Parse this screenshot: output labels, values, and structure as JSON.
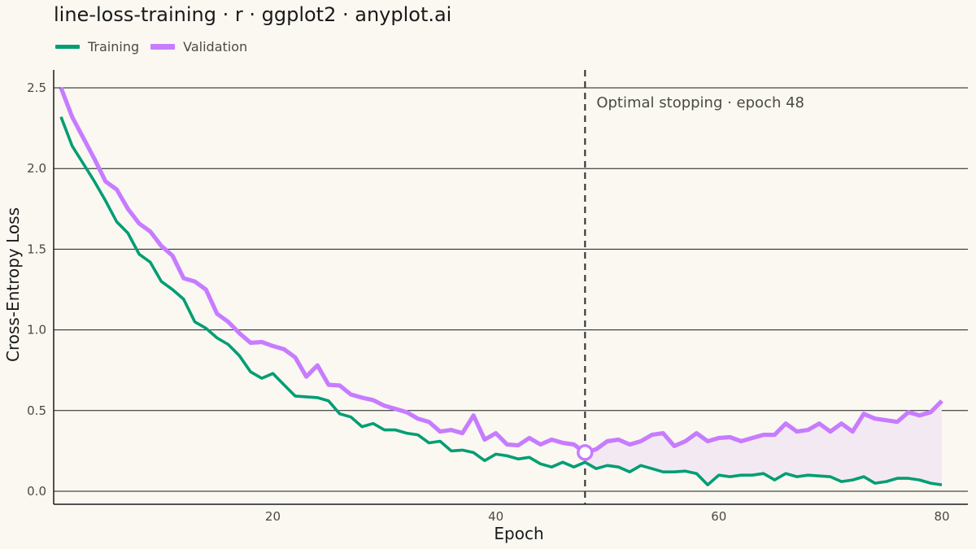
{
  "title": "line-loss-training · r · ggplot2 · anyplot.ai",
  "colors": {
    "background": "#FAF8F1",
    "training": "#009E73",
    "validation": "#C77CFF",
    "gap_fill": "#F3E9F3",
    "grid": "#1A1A1A",
    "stop_line": "#3A3A3A"
  },
  "chart_data": {
    "type": "line",
    "title": "line-loss-training · r · ggplot2 · anyplot.ai",
    "xlabel": "Epoch",
    "ylabel": "Cross-Entropy Loss",
    "xlim": [
      1,
      80
    ],
    "ylim": [
      0,
      2.5
    ],
    "x_ticks": [
      20,
      40,
      60,
      80
    ],
    "y_ticks": [
      0.0,
      0.5,
      1.0,
      1.5,
      2.0,
      2.5
    ],
    "y_tick_labels": [
      "0.0",
      "0.5",
      "1.0",
      "1.5",
      "2.0",
      "2.5"
    ],
    "grid": "horizontal major",
    "legend_position": "top-left",
    "x": [
      1,
      2,
      3,
      4,
      5,
      6,
      7,
      8,
      9,
      10,
      11,
      12,
      13,
      14,
      15,
      16,
      17,
      18,
      19,
      20,
      21,
      22,
      23,
      24,
      25,
      26,
      27,
      28,
      29,
      30,
      31,
      32,
      33,
      34,
      35,
      36,
      37,
      38,
      39,
      40,
      41,
      42,
      43,
      44,
      45,
      46,
      47,
      48,
      49,
      50,
      51,
      52,
      53,
      54,
      55,
      56,
      57,
      58,
      59,
      60,
      61,
      62,
      63,
      64,
      65,
      66,
      67,
      68,
      69,
      70,
      71,
      72,
      73,
      74,
      75,
      76,
      77,
      78,
      79,
      80
    ],
    "series": [
      {
        "name": "Training",
        "values": [
          2.32,
          2.14,
          2.03,
          1.92,
          1.8,
          1.67,
          1.6,
          1.47,
          1.42,
          1.3,
          1.25,
          1.19,
          1.05,
          1.01,
          0.95,
          0.91,
          0.84,
          0.74,
          0.7,
          0.73,
          0.66,
          0.59,
          0.585,
          0.58,
          0.56,
          0.48,
          0.46,
          0.4,
          0.42,
          0.38,
          0.38,
          0.36,
          0.35,
          0.3,
          0.31,
          0.25,
          0.255,
          0.24,
          0.19,
          0.23,
          0.22,
          0.2,
          0.21,
          0.17,
          0.15,
          0.18,
          0.15,
          0.18,
          0.14,
          0.16,
          0.15,
          0.12,
          0.16,
          0.14,
          0.12,
          0.12,
          0.125,
          0.11,
          0.04,
          0.1,
          0.09,
          0.1,
          0.1,
          0.11,
          0.07,
          0.11,
          0.09,
          0.1,
          0.095,
          0.09,
          0.06,
          0.07,
          0.09,
          0.05,
          0.06,
          0.08,
          0.08,
          0.07,
          0.05,
          0.04
        ]
      },
      {
        "name": "Validation",
        "values": [
          2.5,
          2.32,
          2.19,
          2.06,
          1.92,
          1.87,
          1.75,
          1.66,
          1.61,
          1.52,
          1.46,
          1.32,
          1.3,
          1.25,
          1.1,
          1.05,
          0.98,
          0.92,
          0.925,
          0.9,
          0.88,
          0.83,
          0.71,
          0.78,
          0.66,
          0.655,
          0.6,
          0.58,
          0.565,
          0.53,
          0.51,
          0.49,
          0.45,
          0.43,
          0.37,
          0.38,
          0.36,
          0.47,
          0.32,
          0.36,
          0.29,
          0.285,
          0.33,
          0.29,
          0.32,
          0.3,
          0.29,
          0.24,
          0.26,
          0.31,
          0.32,
          0.29,
          0.31,
          0.35,
          0.36,
          0.28,
          0.31,
          0.36,
          0.31,
          0.33,
          0.335,
          0.31,
          0.33,
          0.35,
          0.35,
          0.42,
          0.37,
          0.38,
          0.42,
          0.37,
          0.42,
          0.37,
          0.48,
          0.45,
          0.44,
          0.43,
          0.49,
          0.47,
          0.49,
          0.56
        ]
      }
    ],
    "optimal_epoch": 48,
    "optimal_loss": 0.24,
    "annotation": "Optimal stopping · epoch 48"
  }
}
